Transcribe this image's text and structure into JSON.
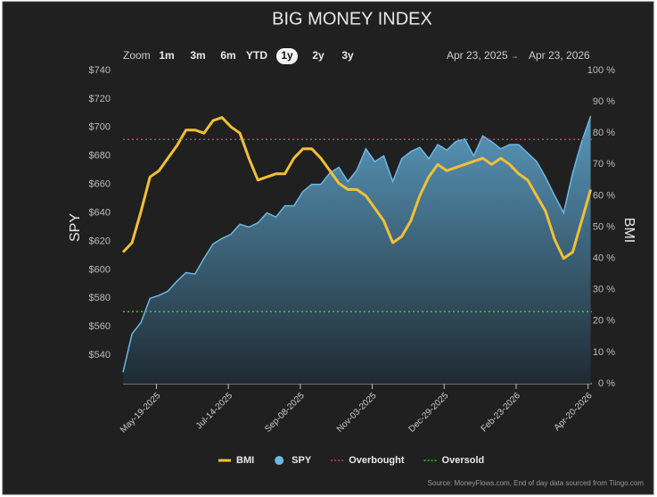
{
  "chart_data": {
    "type": "line",
    "title": "BIG MONEY INDEX",
    "x": [
      "2025-04-23",
      "2025-04-30",
      "2025-05-07",
      "2025-05-14",
      "2025-05-21",
      "2025-05-28",
      "2025-06-04",
      "2025-06-11",
      "2025-06-18",
      "2025-06-25",
      "2025-07-02",
      "2025-07-09",
      "2025-07-16",
      "2025-07-23",
      "2025-07-30",
      "2025-08-06",
      "2025-08-13",
      "2025-08-20",
      "2025-08-27",
      "2025-09-03",
      "2025-09-10",
      "2025-09-17",
      "2025-09-24",
      "2025-10-01",
      "2025-10-08",
      "2025-10-15",
      "2025-10-22",
      "2025-10-29",
      "2025-11-05",
      "2025-11-12",
      "2025-11-19",
      "2025-11-26",
      "2025-12-03",
      "2025-12-10",
      "2025-12-17",
      "2025-12-24",
      "2025-12-31",
      "2026-01-07",
      "2026-01-14",
      "2026-01-21",
      "2026-01-28",
      "2026-02-04",
      "2026-02-11",
      "2026-02-18",
      "2026-02-25",
      "2026-03-04",
      "2026-03-11",
      "2026-03-18",
      "2026-03-25",
      "2026-04-01",
      "2026-04-08",
      "2026-04-15",
      "2026-04-22"
    ],
    "series": [
      {
        "name": "BMI",
        "color": "#f2c036",
        "axis": "y2",
        "values": [
          42,
          45,
          55,
          66,
          68,
          72,
          76,
          81,
          81,
          80,
          84,
          85,
          82,
          80,
          72,
          65,
          66,
          67,
          67,
          72,
          75,
          75,
          72,
          68,
          64,
          62,
          62,
          60,
          56,
          52,
          45,
          47,
          52,
          60,
          66,
          70,
          68,
          69,
          70,
          71,
          72,
          70,
          72,
          70,
          67,
          65,
          60,
          55,
          46,
          40,
          42,
          52,
          62
        ]
      },
      {
        "name": "SPY",
        "color": "#6cb8e6",
        "area": true,
        "values": [
          528,
          555,
          563,
          580,
          582,
          585,
          592,
          598,
          597,
          608,
          618,
          622,
          625,
          632,
          630,
          633,
          640,
          637,
          645,
          645,
          655,
          660,
          660,
          668,
          672,
          662,
          670,
          685,
          676,
          680,
          662,
          678,
          683,
          686,
          678,
          688,
          684,
          690,
          692,
          680,
          694,
          690,
          685,
          688,
          688,
          682,
          676,
          665,
          652,
          640,
          668,
          690,
          708
        ]
      }
    ],
    "reference_lines": [
      {
        "name": "Overbought",
        "color": "#d9376e",
        "axis": "y2",
        "value": 78
      },
      {
        "name": "Oversold",
        "color": "#2ecc40",
        "axis": "y2",
        "value": 23
      }
    ],
    "xlim": [
      "2025-04-23",
      "2026-04-23"
    ],
    "xticks": [
      {
        "value": "2025-05-19",
        "label": "May-19-2025"
      },
      {
        "value": "2025-07-14",
        "label": "Jul-14-2025"
      },
      {
        "value": "2025-09-08",
        "label": "Sep-08-2025"
      },
      {
        "value": "2025-11-03",
        "label": "Nov-03-2025"
      },
      {
        "value": "2025-12-29",
        "label": "Dec-29-2025"
      },
      {
        "value": "2026-02-23",
        "label": "Feb-23-2026"
      },
      {
        "value": "2026-04-20",
        "label": "Apr-20-2026"
      }
    ],
    "ylim": [
      520,
      740
    ],
    "yticks": [
      {
        "value": 540,
        "label": "$540"
      },
      {
        "value": 560,
        "label": "$560"
      },
      {
        "value": 580,
        "label": "$580"
      },
      {
        "value": 600,
        "label": "$600"
      },
      {
        "value": 620,
        "label": "$620"
      },
      {
        "value": 640,
        "label": "$640"
      },
      {
        "value": 660,
        "label": "$660"
      },
      {
        "value": 680,
        "label": "$680"
      },
      {
        "value": 700,
        "label": "$700"
      },
      {
        "value": 720,
        "label": "$720"
      },
      {
        "value": 740,
        "label": "$740"
      }
    ],
    "y2lim": [
      0,
      100
    ],
    "y2ticks": [
      {
        "value": 0,
        "label": "0 %"
      },
      {
        "value": 10,
        "label": "10 %"
      },
      {
        "value": 20,
        "label": "20 %"
      },
      {
        "value": 30,
        "label": "30 %"
      },
      {
        "value": 40,
        "label": "40 %"
      },
      {
        "value": 50,
        "label": "50 %"
      },
      {
        "value": 60,
        "label": "60 %"
      },
      {
        "value": 70,
        "label": "70 %"
      },
      {
        "value": 80,
        "label": "80 %"
      },
      {
        "value": 90,
        "label": "90 %"
      },
      {
        "value": 100,
        "label": "100 %"
      }
    ],
    "ylabel": "SPY",
    "y2label": "BMI"
  },
  "toolbar": {
    "label": "Zoom",
    "buttons": [
      "1m",
      "3m",
      "6m",
      "YTD",
      "1y",
      "2y",
      "3y"
    ],
    "selected": 4,
    "range_from": "Apr 23, 2025",
    "arrow": "→",
    "range_to": "Apr 23, 2026"
  },
  "footer": {
    "source": "Source: MoneyFlows.com, End of day data sourced from Tiingo.com"
  }
}
